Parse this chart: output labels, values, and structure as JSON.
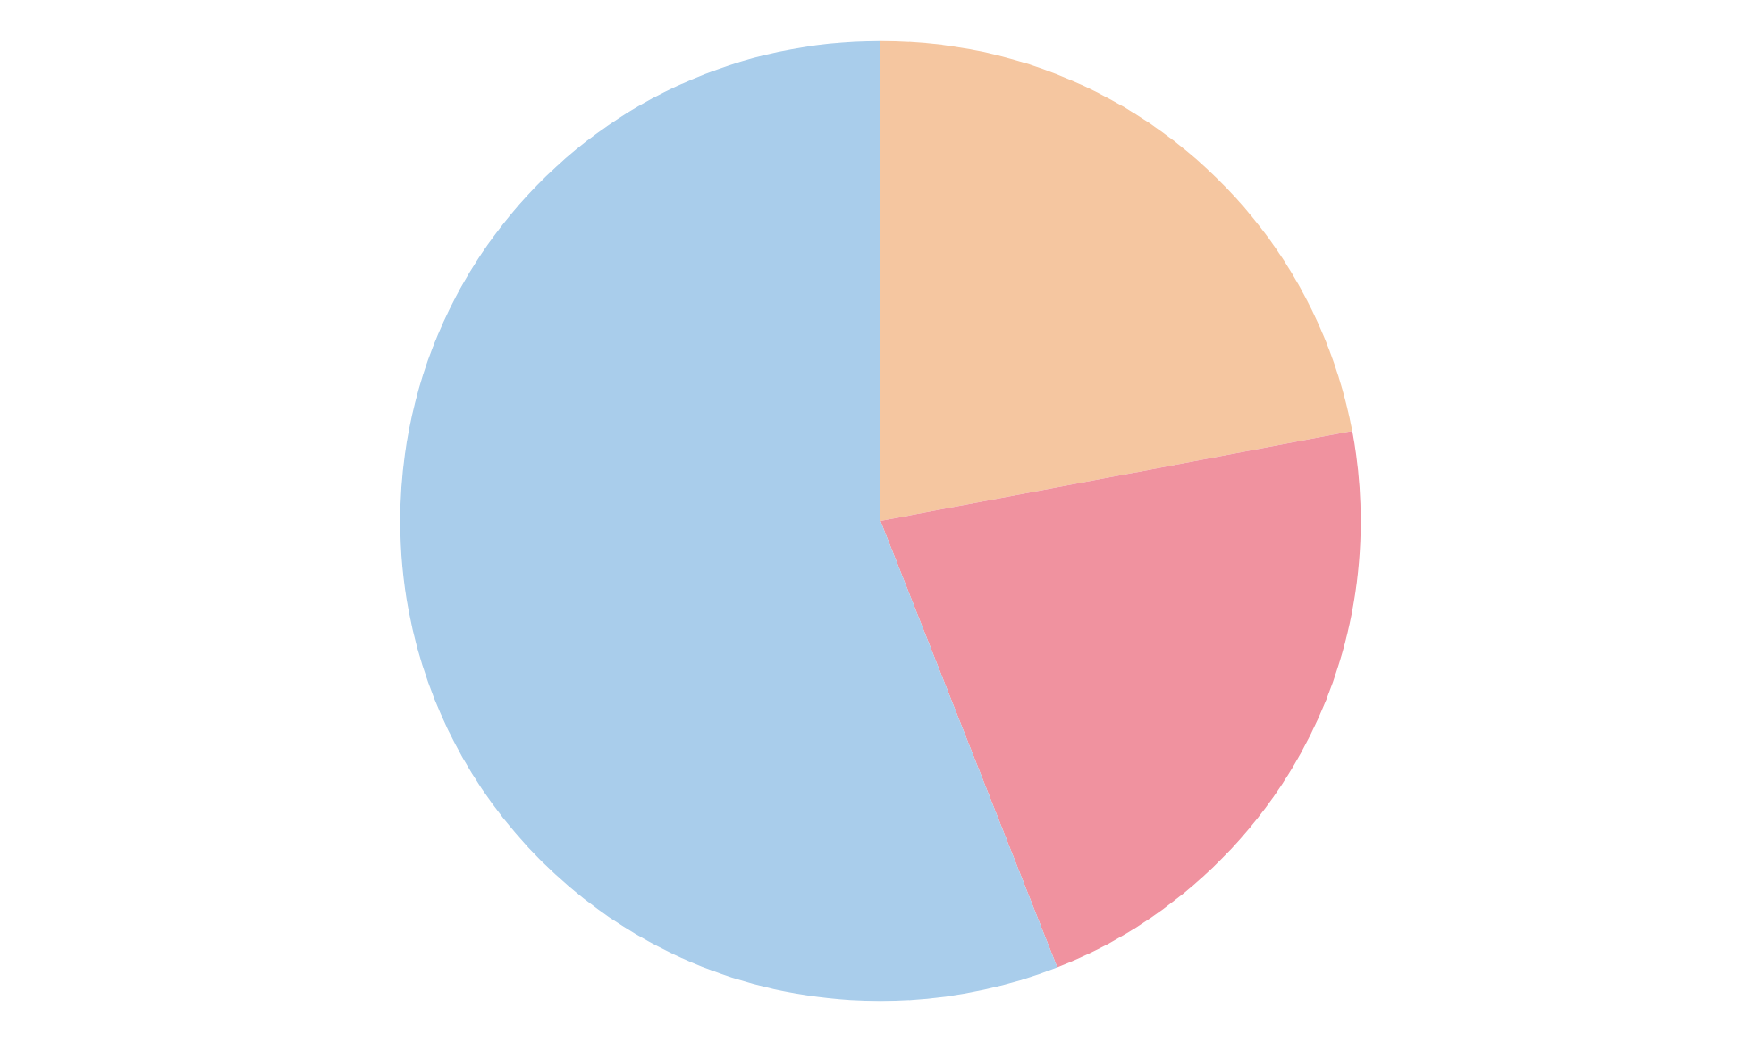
{
  "chart_data": {
    "type": "pie",
    "categories": [
      null,
      null,
      null
    ],
    "values": [
      22,
      22,
      56
    ],
    "colors": [
      "#f5c6a0",
      "#f0929f",
      "#a9cdeb"
    ]
  }
}
